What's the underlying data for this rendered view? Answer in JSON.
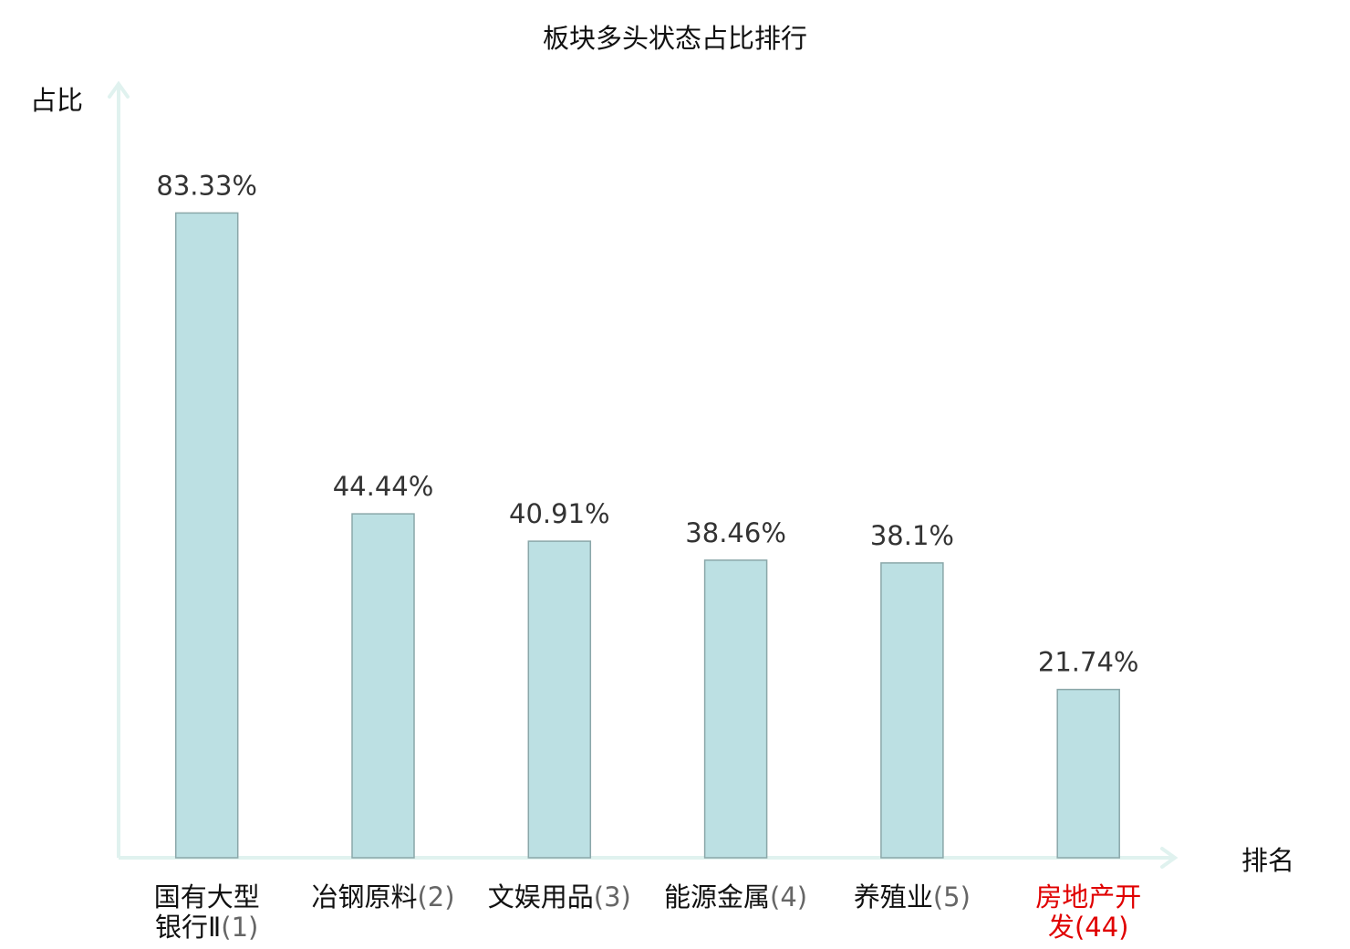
{
  "chart_data": {
    "type": "bar",
    "title": "板块多头状态占比排行",
    "ylabel": "占比",
    "xlabel": "排名",
    "ylim": [
      0,
      100
    ],
    "grid": false,
    "bar_color": "#bce0e3",
    "bar_border_color": "#8aa7a9",
    "axis_color": "#e0f2ef",
    "highlight_color": "#e00000",
    "categories": [
      {
        "lines": [
          {
            "name": "国有大型"
          },
          {
            "name": "银行Ⅱ",
            "rank": "(1)"
          }
        ],
        "highlight": false
      },
      {
        "lines": [
          {
            "name": "冶钢原料",
            "rank": "(2)"
          }
        ],
        "highlight": false
      },
      {
        "lines": [
          {
            "name": "文娱用品",
            "rank": "(3)"
          }
        ],
        "highlight": false
      },
      {
        "lines": [
          {
            "name": "能源金属",
            "rank": "(4)"
          }
        ],
        "highlight": false
      },
      {
        "lines": [
          {
            "name": "养殖业",
            "rank": "(5)"
          }
        ],
        "highlight": false
      },
      {
        "lines": [
          {
            "name": "房地产开"
          },
          {
            "name": "发",
            "rank": "(44)"
          }
        ],
        "highlight": true
      }
    ],
    "values": [
      83.33,
      44.44,
      40.91,
      38.46,
      38.1,
      21.74
    ],
    "value_labels": [
      "83.33%",
      "44.44%",
      "40.91%",
      "38.46%",
      "38.1%",
      "21.74%"
    ]
  }
}
